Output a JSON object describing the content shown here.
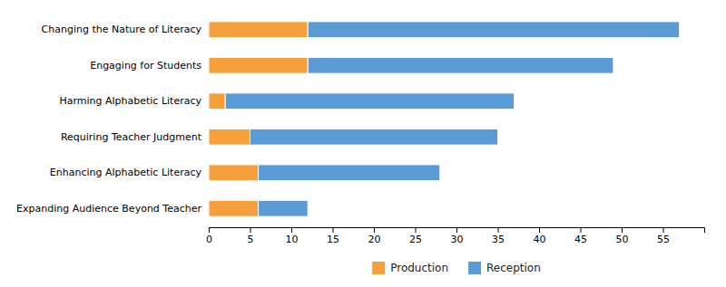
{
  "chart_data": {
    "type": "bar",
    "orientation": "horizontal",
    "stacked": true,
    "categories": [
      "Expanding Audience Beyond Teacher",
      "Enhancing Alphabetic Literacy",
      "Requiring Teacher Judgment",
      "Harming Alphabetic Literacy",
      "Engaging for Students",
      "Changing the Nature of Literacy"
    ],
    "series": [
      {
        "name": "Production",
        "color": "#F5A03C",
        "values": [
          6,
          6,
          5,
          2,
          12,
          12
        ]
      },
      {
        "name": "Reception",
        "color": "#5B9BD5",
        "values": [
          6,
          22,
          30,
          35,
          37,
          45
        ]
      }
    ],
    "xlim": [
      0,
      60
    ],
    "xticks": [
      0,
      5,
      10,
      15,
      20,
      25,
      30,
      35,
      40,
      45,
      50,
      55
    ],
    "grid": false,
    "legend": "bottom"
  }
}
